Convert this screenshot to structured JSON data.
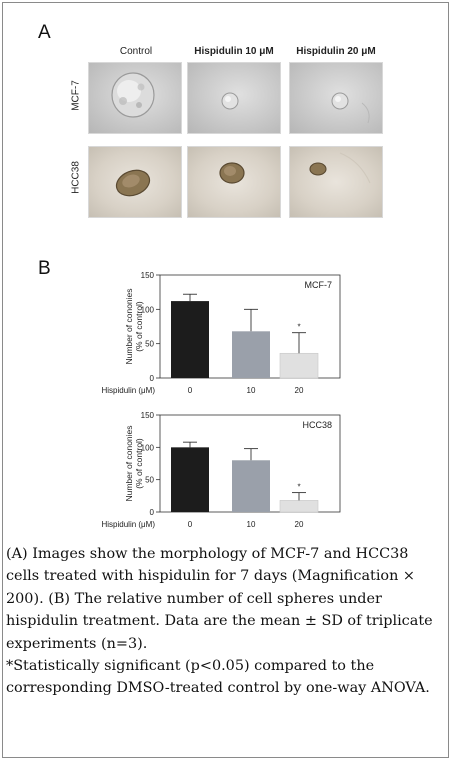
{
  "panel_a": {
    "letter": "A",
    "columns": [
      "Control",
      "Hispidulin 10 μM",
      "Hispidulin 20 μM"
    ],
    "rows": [
      "MCF-7",
      "HCC38"
    ]
  },
  "panel_b": {
    "letter": "B"
  },
  "chart_data": [
    {
      "type": "bar",
      "legend": "MCF-7",
      "legend_position": "top-right",
      "categories": [
        "0",
        "10",
        "20"
      ],
      "values": [
        112,
        68,
        36
      ],
      "errors": [
        10,
        32,
        30
      ],
      "significant": [
        false,
        false,
        true
      ],
      "significance_marker": "*",
      "xlabel": "Hispidulin (μM)",
      "ylabel": "Number of cononies\n(% of control)",
      "ylim": [
        0,
        150
      ],
      "yticks": [
        0,
        50,
        100,
        150
      ],
      "grid": false,
      "colors": [
        "#1c1c1c",
        "#9aa0aa",
        "#e0e0e0"
      ]
    },
    {
      "type": "bar",
      "legend": "HCC38",
      "legend_position": "top-right",
      "categories": [
        "0",
        "10",
        "20"
      ],
      "values": [
        100,
        80,
        18
      ],
      "errors": [
        8,
        18,
        12
      ],
      "significant": [
        false,
        false,
        true
      ],
      "significance_marker": "*",
      "xlabel": "Hispidulin (μM)",
      "ylabel": "Number of cononies\n(% of control)",
      "ylim": [
        0,
        150
      ],
      "yticks": [
        0,
        50,
        100,
        150
      ],
      "grid": false,
      "colors": [
        "#1c1c1c",
        "#9aa0aa",
        "#e0e0e0"
      ]
    }
  ],
  "caption": {
    "line1": "(A) Images show the morphology of MCF-7 and HCC38 cells treated with hispidulin for 7 days (Magnification × 200). (B) The relative number of cell spheres under hispidulin treatment. Data are the mean ± SD of triplicate experiments (n=3).",
    "line2": "*Statistically significant (p<0.05) compared to the corresponding DMSO-treated control by one-way ANOVA."
  }
}
